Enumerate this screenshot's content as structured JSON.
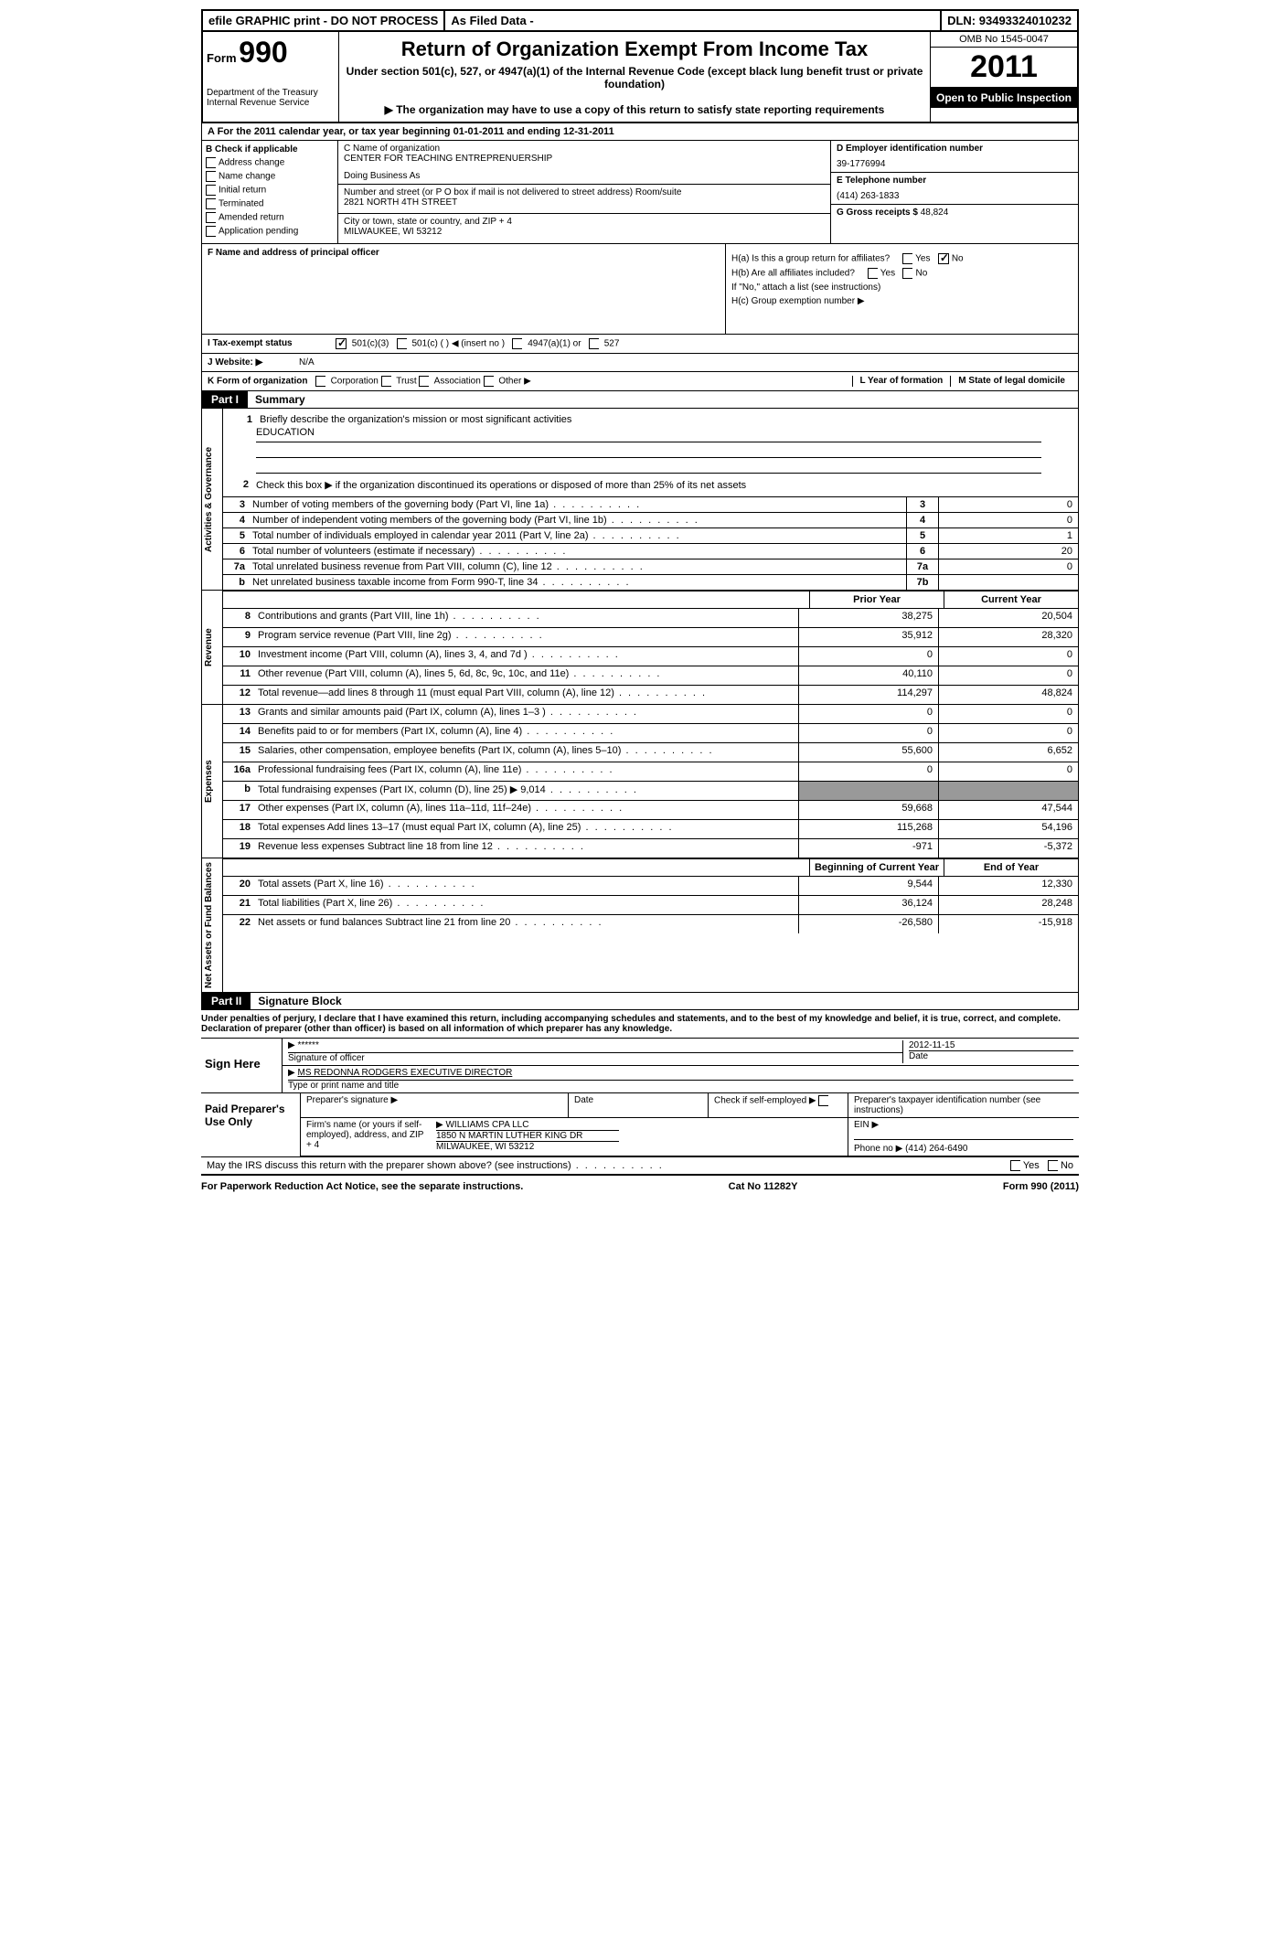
{
  "topbar": {
    "efile": "efile GRAPHIC print - DO NOT PROCESS",
    "filed": "As Filed Data -",
    "dln_label": "DLN:",
    "dln": "93493324010232"
  },
  "header": {
    "form_label": "Form",
    "form_num": "990",
    "dept1": "Department of the Treasury",
    "dept2": "Internal Revenue Service",
    "title": "Return of Organization Exempt From Income Tax",
    "sub1": "Under section 501(c), 527, or 4947(a)(1) of the Internal Revenue Code (except black lung benefit trust or private foundation)",
    "sub2": "▶ The organization may have to use a copy of this return to satisfy state reporting requirements",
    "omb": "OMB No 1545-0047",
    "year": "2011",
    "open": "Open to Public Inspection"
  },
  "row_a": "A  For the 2011 calendar year, or tax year beginning 01-01-2011     and ending 12-31-2011",
  "col_b": {
    "hdr": "B Check if applicable",
    "c1": "Address change",
    "c2": "Name change",
    "c3": "Initial return",
    "c4": "Terminated",
    "c5": "Amended return",
    "c6": "Application pending"
  },
  "col_c": {
    "name_lbl": "C Name of organization",
    "name": "CENTER FOR TEACHING ENTREPRENUERSHIP",
    "dba_lbl": "Doing Business As",
    "addr_lbl": "Number and street (or P O  box if mail is not delivered to street address)  Room/suite",
    "addr": "2821 NORTH 4TH STREET",
    "city_lbl": "City or town, state or country, and ZIP + 4",
    "city": "MILWAUKEE, WI  53212"
  },
  "col_d": {
    "d_lbl": "D Employer identification number",
    "d_val": "39-1776994",
    "e_lbl": "E Telephone number",
    "e_val": "(414) 263-1833",
    "g_lbl": "G Gross receipts $",
    "g_val": "48,824"
  },
  "col_f": "F   Name and address of principal officer",
  "col_h": {
    "ha": "H(a)  Is this a group return for affiliates?",
    "hb": "H(b)  Are all affiliates included?",
    "hb2": "If \"No,\" attach a list  (see instructions)",
    "hc": "H(c)   Group exemption number ▶",
    "yes": "Yes",
    "no": "No"
  },
  "row_i": {
    "label": "I   Tax-exempt status",
    "o1": "501(c)(3)",
    "o2": "501(c) (   ) ◀ (insert no )",
    "o3": "4947(a)(1) or",
    "o4": "527"
  },
  "row_j": {
    "label": "J  Website: ▶",
    "val": "N/A"
  },
  "row_k": {
    "label": "K Form of organization",
    "o1": "Corporation",
    "o2": "Trust",
    "o3": "Association",
    "o4": "Other ▶",
    "l": "L Year of formation",
    "m": "M State of legal domicile"
  },
  "part1": {
    "label": "Part I",
    "title": "Summary"
  },
  "sides": {
    "gov": "Activities & Governance",
    "rev": "Revenue",
    "exp": "Expenses",
    "net": "Net Assets or Fund Balances"
  },
  "summary": {
    "l1": "Briefly describe the organization's mission or most significant activities",
    "l1v": "EDUCATION",
    "l2": "Check this box ▶      if the organization discontinued its operations or disposed of more than 25% of its net assets",
    "l3": "Number of voting members of the governing body (Part VI, line 1a)",
    "l4": "Number of independent voting members of the governing body (Part VI, line 1b)",
    "l5": "Total number of individuals employed in calendar year 2011 (Part V, line 2a)",
    "l6": "Total number of volunteers (estimate if necessary)",
    "l7a": "Total unrelated business revenue from Part VIII, column (C), line 12",
    "l7b": "Net unrelated business taxable income from Form 990-T, line 34"
  },
  "vals37": {
    "v3": "0",
    "v4": "0",
    "v5": "1",
    "v6": "20",
    "v7a": "0",
    "v7b": ""
  },
  "colhdr": {
    "prior": "Prior Year",
    "curr": "Current Year",
    "beg": "Beginning of Current Year",
    "end": "End of Year"
  },
  "revenue": [
    {
      "n": "8",
      "d": "Contributions and grants (Part VIII, line 1h)",
      "p": "38,275",
      "c": "20,504"
    },
    {
      "n": "9",
      "d": "Program service revenue (Part VIII, line 2g)",
      "p": "35,912",
      "c": "28,320"
    },
    {
      "n": "10",
      "d": "Investment income (Part VIII, column (A), lines 3, 4, and 7d )",
      "p": "0",
      "c": "0"
    },
    {
      "n": "11",
      "d": "Other revenue (Part VIII, column (A), lines 5, 6d, 8c, 9c, 10c, and 11e)",
      "p": "40,110",
      "c": "0"
    },
    {
      "n": "12",
      "d": "Total revenue—add lines 8 through 11 (must equal Part VIII, column (A), line 12)",
      "p": "114,297",
      "c": "48,824"
    }
  ],
  "expenses": [
    {
      "n": "13",
      "d": "Grants and similar amounts paid (Part IX, column (A), lines 1–3 )",
      "p": "0",
      "c": "0"
    },
    {
      "n": "14",
      "d": "Benefits paid to or for members (Part IX, column (A), line 4)",
      "p": "0",
      "c": "0"
    },
    {
      "n": "15",
      "d": "Salaries, other compensation, employee benefits (Part IX, column (A), lines 5–10)",
      "p": "55,600",
      "c": "6,652"
    },
    {
      "n": "16a",
      "d": "Professional fundraising fees (Part IX, column (A), line 11e)",
      "p": "0",
      "c": "0"
    },
    {
      "n": "b",
      "d": "Total fundraising expenses (Part IX, column (D), line 25)  ▶ 9,014",
      "p": "grey",
      "c": "grey"
    },
    {
      "n": "17",
      "d": "Other expenses (Part IX, column (A), lines 11a–11d, 11f–24e)",
      "p": "59,668",
      "c": "47,544"
    },
    {
      "n": "18",
      "d": "Total expenses  Add lines 13–17 (must equal Part IX, column (A), line 25)",
      "p": "115,268",
      "c": "54,196"
    },
    {
      "n": "19",
      "d": "Revenue less expenses  Subtract line 18 from line 12",
      "p": "-971",
      "c": "-5,372"
    }
  ],
  "netassets": [
    {
      "n": "20",
      "d": "Total assets (Part X, line 16)",
      "p": "9,544",
      "c": "12,330"
    },
    {
      "n": "21",
      "d": "Total liabilities (Part X, line 26)",
      "p": "36,124",
      "c": "28,248"
    },
    {
      "n": "22",
      "d": "Net assets or fund balances  Subtract line 21 from line 20",
      "p": "-26,580",
      "c": "-15,918"
    }
  ],
  "part2": {
    "label": "Part II",
    "title": "Signature Block"
  },
  "sig": {
    "perjury": "Under penalties of perjury, I declare that I have examined this return, including accompanying schedules and statements, and to the best of my knowledge and belief, it is true, correct, and complete. Declaration of preparer (other than officer) is based on all information of which preparer has any knowledge.",
    "sign_here": "Sign Here",
    "stars": "******",
    "sig_of": "Signature of officer",
    "date": "Date",
    "date_val": "2012-11-15",
    "name": "MS REDONNA RODGERS EXECUTIVE DIRECTOR",
    "name_lbl": "Type or print name and title"
  },
  "prep": {
    "label": "Paid Preparer's Use Only",
    "psig": "Preparer's signature",
    "date": "Date",
    "check": "Check if self-employed ▶",
    "ptin": "Preparer's taxpayer identification number (see instructions)",
    "firm_lbl": "Firm's name (or yours if self-employed), address, and ZIP + 4",
    "firm": "WILLIAMS CPA LLC",
    "addr": "1850 N MARTIN LUTHER KING DR",
    "city": "MILWAUKEE, WI  53212",
    "ein": "EIN ▶",
    "phone_lbl": "Phone no  ▶",
    "phone": "(414) 264-6490"
  },
  "discuss": {
    "q": "May the IRS discuss this return with the preparer shown above? (see instructions)",
    "yes": "Yes",
    "no": "No"
  },
  "footer": {
    "left": "For Paperwork Reduction Act Notice, see the separate instructions.",
    "mid": "Cat No 11282Y",
    "right": "Form 990 (2011)"
  }
}
